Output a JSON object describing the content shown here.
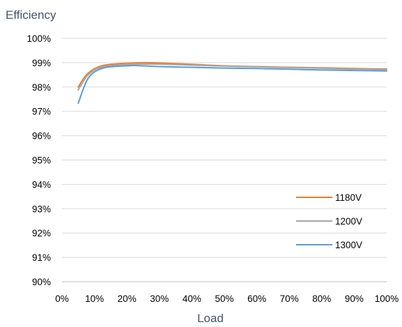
{
  "chart_data": {
    "type": "line",
    "title": "",
    "ylabel": "Efficiency",
    "xlabel": "Load",
    "xlim": [
      0,
      100
    ],
    "ylim": [
      90,
      100
    ],
    "x_ticks": [
      "0%",
      "10%",
      "20%",
      "30%",
      "40%",
      "50%",
      "60%",
      "70%",
      "80%",
      "90%",
      "100%"
    ],
    "y_ticks": [
      "90%",
      "91%",
      "92%",
      "93%",
      "94%",
      "95%",
      "96%",
      "97%",
      "98%",
      "99%",
      "100%"
    ],
    "grid": "horizontal",
    "legend_position": "right",
    "series": [
      {
        "name": "1180V",
        "color": "#ed7d31",
        "x": [
          5,
          7.5,
          10,
          12.5,
          15,
          20,
          25,
          30,
          40,
          50,
          60,
          70,
          80,
          90,
          100
        ],
        "y": [
          98.0,
          98.5,
          98.75,
          98.88,
          98.93,
          98.98,
          99.0,
          98.99,
          98.93,
          98.87,
          98.84,
          98.81,
          98.79,
          98.76,
          98.74
        ]
      },
      {
        "name": "1200V",
        "color": "#a5a5a5",
        "x": [
          5,
          7.5,
          10,
          12.5,
          15,
          20,
          25,
          30,
          40,
          50,
          60,
          70,
          80,
          90,
          100
        ],
        "y": [
          97.88,
          98.42,
          98.7,
          98.82,
          98.88,
          98.92,
          98.94,
          98.94,
          98.9,
          98.86,
          98.83,
          98.8,
          98.77,
          98.74,
          98.72
        ]
      },
      {
        "name": "1300V",
        "color": "#5b9bd5",
        "x": [
          5,
          6.5,
          8,
          10,
          12.5,
          15,
          20,
          23,
          30,
          40,
          50,
          60,
          70,
          80,
          90,
          100
        ],
        "y": [
          97.33,
          97.9,
          98.35,
          98.62,
          98.77,
          98.83,
          98.87,
          98.88,
          98.84,
          98.81,
          98.78,
          98.76,
          98.73,
          98.7,
          98.68,
          98.66
        ]
      }
    ]
  }
}
